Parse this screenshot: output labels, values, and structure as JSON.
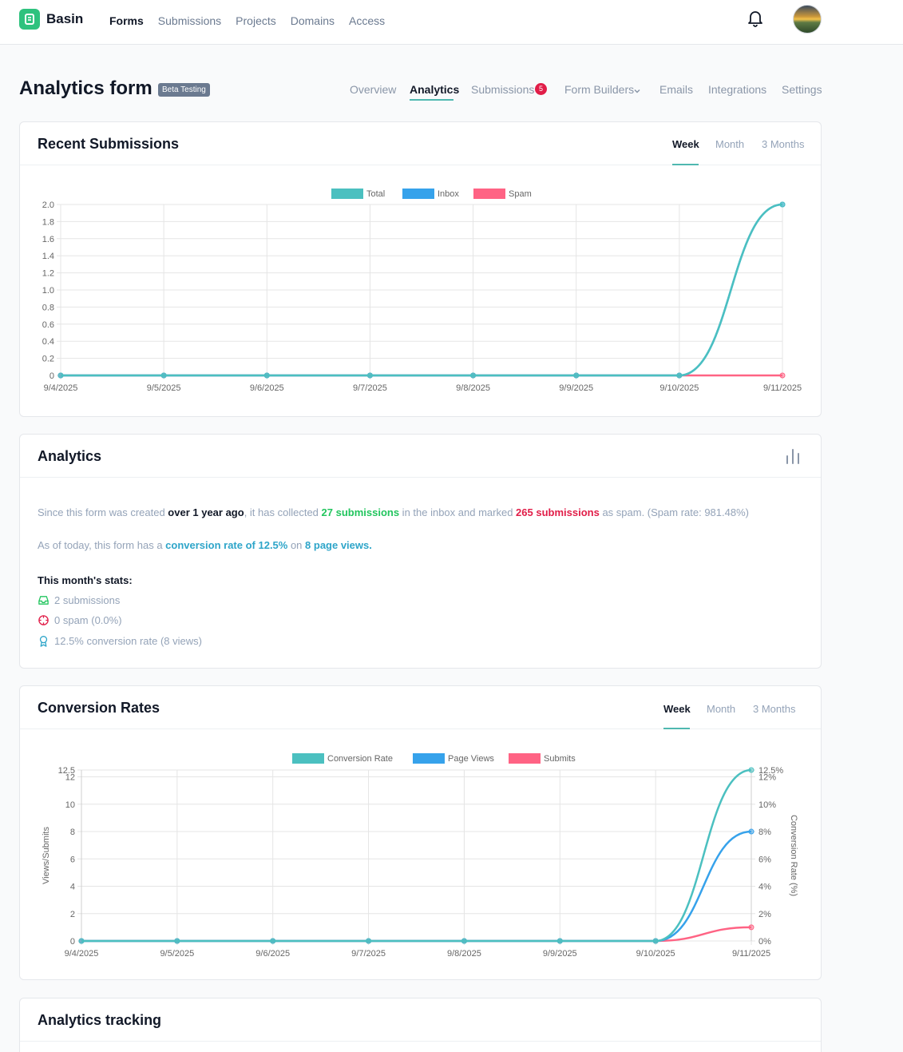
{
  "app": {
    "name": "Basin",
    "nav": [
      "Forms",
      "Submissions",
      "Projects",
      "Domains",
      "Access"
    ],
    "active_nav": "Forms"
  },
  "page": {
    "title": "Analytics form",
    "badge": "Beta Testing",
    "tabs": [
      "Overview",
      "Analytics",
      "Submissions",
      "Form Builders",
      "Emails",
      "Integrations",
      "Settings"
    ],
    "active_tab": "Analytics",
    "submissions_count": "5"
  },
  "recent_submissions": {
    "title": "Recent Submissions",
    "ranges": [
      "Week",
      "Month",
      "3 Months"
    ],
    "active_range": "Week"
  },
  "analytics": {
    "title": "Analytics",
    "line1": {
      "p1": "Since this form was created ",
      "b1": "over 1 year ago",
      "p2": ", it has collected ",
      "b2": "27 submissions",
      "p3": " in the inbox and marked ",
      "b3": "265 submissions",
      "p4": " as spam. (Spam rate: 981.48%)"
    },
    "line2": {
      "p1": "As of today, this form has a ",
      "b1": "conversion rate of 12.5%",
      "p2": " on ",
      "b2": "8 page views."
    },
    "month_title": "This month's stats:",
    "month_stats": [
      {
        "icon": "inbox-icon",
        "text": "2 submissions"
      },
      {
        "icon": "spam-icon",
        "text": "0 spam (0.0%)"
      },
      {
        "icon": "award-icon",
        "text": "12.5% conversion rate (8 views)"
      }
    ]
  },
  "conversion_rates": {
    "title": "Conversion Rates",
    "ranges": [
      "Week",
      "Month",
      "3 Months"
    ],
    "active_range": "Week"
  },
  "analytics_tracking": {
    "title": "Analytics tracking"
  },
  "colors": {
    "total": "#4bc0c0",
    "inbox": "#36a2eb",
    "spam": "#ff6384",
    "accent": "#4fb8b0"
  },
  "chart_data": [
    {
      "type": "line",
      "title": "Recent Submissions",
      "categories": [
        "9/4/2025",
        "9/5/2025",
        "9/6/2025",
        "9/7/2025",
        "9/8/2025",
        "9/9/2025",
        "9/10/2025",
        "9/11/2025"
      ],
      "series": [
        {
          "name": "Total",
          "values": [
            0,
            0,
            0,
            0,
            0,
            0,
            0,
            2
          ]
        },
        {
          "name": "Inbox",
          "values": [
            0,
            0,
            0,
            0,
            0,
            0,
            0,
            2
          ]
        },
        {
          "name": "Spam",
          "values": [
            0,
            0,
            0,
            0,
            0,
            0,
            0,
            0
          ]
        }
      ],
      "ylim": [
        0,
        2
      ],
      "yticks": [
        "0",
        "0.2",
        "0.4",
        "0.6",
        "0.8",
        "1.0",
        "1.2",
        "1.4",
        "1.6",
        "1.8",
        "2.0"
      ]
    },
    {
      "type": "line",
      "title": "Conversion Rates",
      "categories": [
        "9/4/2025",
        "9/5/2025",
        "9/6/2025",
        "9/7/2025",
        "9/8/2025",
        "9/9/2025",
        "9/10/2025",
        "9/11/2025"
      ],
      "series": [
        {
          "name": "Conversion Rate",
          "axis": "right",
          "values": [
            0,
            0,
            0,
            0,
            0,
            0,
            0,
            12.5
          ]
        },
        {
          "name": "Page Views",
          "axis": "left",
          "values": [
            0,
            0,
            0,
            0,
            0,
            0,
            0,
            8
          ]
        },
        {
          "name": "Submits",
          "axis": "left",
          "values": [
            0,
            0,
            0,
            0,
            0,
            0,
            0,
            1
          ]
        }
      ],
      "ylabel": "Views/Submits",
      "y2label": "Conversion Rate (%)",
      "ylim": [
        0,
        12.5
      ],
      "y2lim": [
        0,
        12.5
      ],
      "yticks": [
        "0",
        "2",
        "4",
        "6",
        "8",
        "10",
        "12",
        "12.5"
      ],
      "y2ticks": [
        "0%",
        "2%",
        "4%",
        "6%",
        "8%",
        "10%",
        "12%",
        "12.5%"
      ]
    }
  ]
}
